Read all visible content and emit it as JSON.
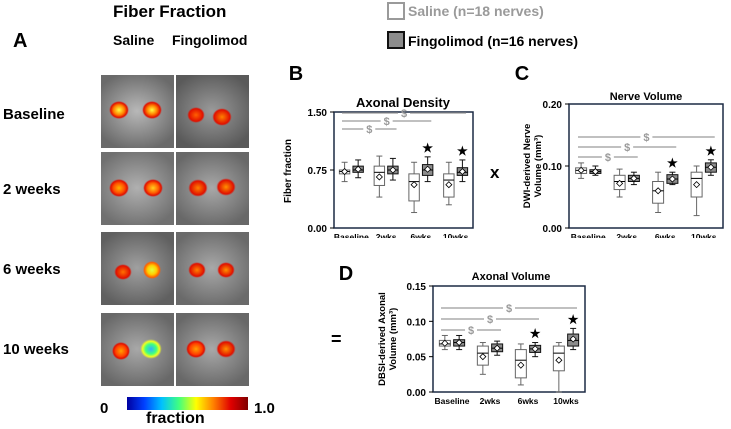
{
  "panel_a": {
    "letter": "A",
    "title": "Fiber Fraction",
    "columns": [
      "Saline",
      "Fingolimod"
    ],
    "rows": [
      "Baseline",
      "2 weeks",
      "6 weeks",
      "10 weeks"
    ],
    "colorbar": {
      "min_label": "0",
      "max_label": "1.0",
      "label": "fraction"
    }
  },
  "legend": [
    {
      "label": "Saline (n=18 nerves)",
      "fill": "#ffffff",
      "text_color": "#9a9a9a"
    },
    {
      "label": "Fingolimod (n=16 nerves)",
      "fill": "#8c8c8c",
      "text_color": "#000000"
    }
  ],
  "operators": {
    "times": "x",
    "equals": "="
  },
  "colors": {
    "saline_box": "#ffffff",
    "fingolimod_box": "#8c8c8c",
    "bracket": "#9a9a9a",
    "frame": "#1c2a44"
  },
  "chart_data": [
    {
      "id": "B",
      "type": "box",
      "letter": "B",
      "title": "Axonal Density",
      "ylabel": "Fiber fraction",
      "xlabel": "",
      "categories": [
        "Baseline",
        "2wks",
        "6wks",
        "10wks"
      ],
      "ylim": [
        0.0,
        1.5
      ],
      "yticks": [
        "0.00",
        "0.75",
        "1.50"
      ],
      "ytick_values": [
        0,
        0.75,
        1.5
      ],
      "series": [
        {
          "name": "Saline",
          "boxes": [
            {
              "min": 0.6,
              "q1": 0.7,
              "median": 0.73,
              "q3": 0.75,
              "max": 0.85,
              "mean": 0.73
            },
            {
              "min": 0.4,
              "q1": 0.55,
              "median": 0.72,
              "q3": 0.8,
              "max": 0.93,
              "mean": 0.66
            },
            {
              "min": 0.2,
              "q1": 0.35,
              "median": 0.6,
              "q3": 0.7,
              "max": 0.85,
              "mean": 0.56
            },
            {
              "min": 0.3,
              "q1": 0.4,
              "median": 0.62,
              "q3": 0.7,
              "max": 0.85,
              "mean": 0.56
            }
          ]
        },
        {
          "name": "Fingolimod",
          "boxes": [
            {
              "min": 0.65,
              "q1": 0.72,
              "median": 0.75,
              "q3": 0.8,
              "max": 0.88,
              "mean": 0.76
            },
            {
              "min": 0.62,
              "q1": 0.7,
              "median": 0.75,
              "q3": 0.8,
              "max": 0.9,
              "mean": 0.75
            },
            {
              "min": 0.6,
              "q1": 0.68,
              "median": 0.75,
              "q3": 0.82,
              "max": 0.92,
              "mean": 0.76
            },
            {
              "min": 0.6,
              "q1": 0.68,
              "median": 0.72,
              "q3": 0.78,
              "max": 0.88,
              "mean": 0.73
            }
          ]
        }
      ],
      "significance_stars": [
        "",
        "",
        "★",
        "★"
      ],
      "brackets": [
        {
          "from": 0,
          "to": 1,
          "label": "$"
        },
        {
          "from": 0,
          "to": 2,
          "label": "$"
        },
        {
          "from": 0,
          "to": 3,
          "label": "$"
        }
      ]
    },
    {
      "id": "C",
      "type": "box",
      "letter": "C",
      "title": "Nerve Volume",
      "ylabel": "DWI-derived Nerve Volume (mm³)",
      "xlabel": "",
      "ylabel_lines": [
        "DWI-derived Nerve",
        "Volume (mm³)"
      ],
      "categories": [
        "Baseline",
        "2wks",
        "6wks",
        "10wks"
      ],
      "ylim": [
        0.0,
        0.2
      ],
      "yticks": [
        "0.00",
        "0.10",
        "0.20"
      ],
      "ytick_values": [
        0,
        0.1,
        0.2
      ],
      "series": [
        {
          "name": "Saline",
          "boxes": [
            {
              "min": 0.08,
              "q1": 0.088,
              "median": 0.093,
              "q3": 0.097,
              "max": 0.105,
              "mean": 0.093
            },
            {
              "min": 0.05,
              "q1": 0.062,
              "median": 0.075,
              "q3": 0.085,
              "max": 0.095,
              "mean": 0.072
            },
            {
              "min": 0.025,
              "q1": 0.04,
              "median": 0.06,
              "q3": 0.075,
              "max": 0.09,
              "mean": 0.06
            },
            {
              "min": 0.02,
              "q1": 0.05,
              "median": 0.08,
              "q3": 0.09,
              "max": 0.1,
              "mean": 0.07
            }
          ]
        },
        {
          "name": "Fingolimod",
          "boxes": [
            {
              "min": 0.085,
              "q1": 0.088,
              "median": 0.091,
              "q3": 0.094,
              "max": 0.1,
              "mean": 0.091
            },
            {
              "min": 0.07,
              "q1": 0.075,
              "median": 0.08,
              "q3": 0.085,
              "max": 0.09,
              "mean": 0.08
            },
            {
              "min": 0.07,
              "q1": 0.072,
              "median": 0.079,
              "q3": 0.086,
              "max": 0.09,
              "mean": 0.079
            },
            {
              "min": 0.085,
              "q1": 0.09,
              "median": 0.098,
              "q3": 0.105,
              "max": 0.11,
              "mean": 0.098
            }
          ]
        }
      ],
      "significance_stars": [
        "",
        "",
        "★",
        "★"
      ],
      "brackets": [
        {
          "from": 0,
          "to": 1,
          "label": "$"
        },
        {
          "from": 0,
          "to": 2,
          "label": "$"
        },
        {
          "from": 0,
          "to": 3,
          "label": "$"
        }
      ]
    },
    {
      "id": "D",
      "type": "box",
      "letter": "D",
      "title": "Axonal Volume",
      "ylabel": "DBSI-derived Axonal Volume (mm³)",
      "xlabel": "",
      "ylabel_lines": [
        "DBSI-derived Axonal",
        "Volume (mm³)"
      ],
      "categories": [
        "Baseline",
        "2wks",
        "6wks",
        "10wks"
      ],
      "ylim": [
        0.0,
        0.15
      ],
      "yticks": [
        "0.00",
        "0.05",
        "0.10",
        "0.15"
      ],
      "ytick_values": [
        0,
        0.05,
        0.1,
        0.15
      ],
      "series": [
        {
          "name": "Saline",
          "boxes": [
            {
              "min": 0.06,
              "q1": 0.065,
              "median": 0.068,
              "q3": 0.073,
              "max": 0.08,
              "mean": 0.069
            },
            {
              "min": 0.025,
              "q1": 0.038,
              "median": 0.055,
              "q3": 0.065,
              "max": 0.07,
              "mean": 0.05
            },
            {
              "min": 0.01,
              "q1": 0.02,
              "median": 0.045,
              "q3": 0.06,
              "max": 0.068,
              "mean": 0.038
            },
            {
              "min": 0.0,
              "q1": 0.03,
              "median": 0.055,
              "q3": 0.065,
              "max": 0.07,
              "mean": 0.045
            }
          ]
        },
        {
          "name": "Fingolimod",
          "boxes": [
            {
              "min": 0.06,
              "q1": 0.065,
              "median": 0.07,
              "q3": 0.074,
              "max": 0.08,
              "mean": 0.07
            },
            {
              "min": 0.052,
              "q1": 0.057,
              "median": 0.062,
              "q3": 0.068,
              "max": 0.072,
              "mean": 0.062
            },
            {
              "min": 0.05,
              "q1": 0.056,
              "median": 0.061,
              "q3": 0.066,
              "max": 0.07,
              "mean": 0.061
            },
            {
              "min": 0.06,
              "q1": 0.065,
              "median": 0.073,
              "q3": 0.082,
              "max": 0.09,
              "mean": 0.075
            }
          ]
        }
      ],
      "significance_stars": [
        "",
        "",
        "★",
        "★"
      ],
      "brackets": [
        {
          "from": 0,
          "to": 1,
          "label": "$"
        },
        {
          "from": 0,
          "to": 2,
          "label": "$"
        },
        {
          "from": 0,
          "to": 3,
          "label": "$"
        }
      ]
    }
  ]
}
